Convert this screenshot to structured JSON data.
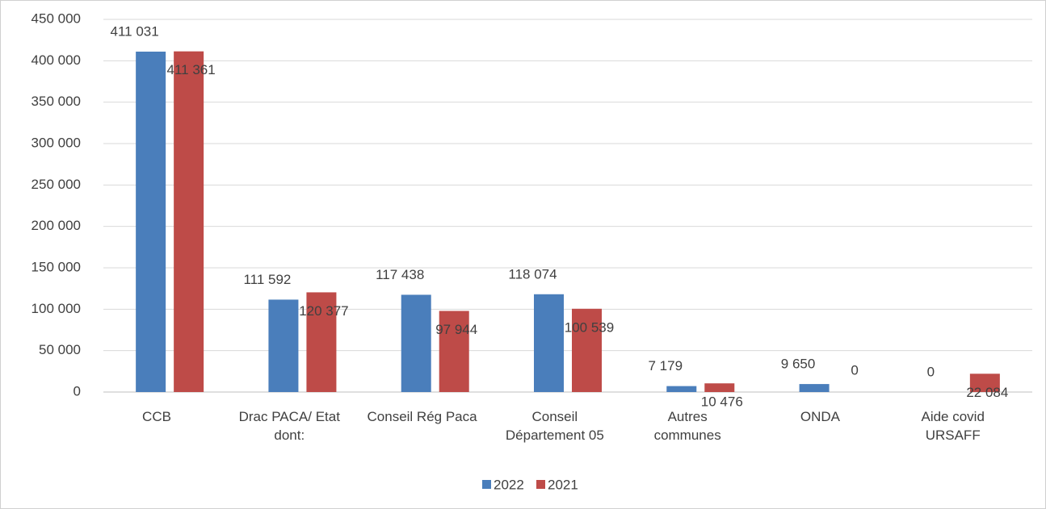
{
  "chart_data": {
    "type": "bar",
    "categories": [
      "CCB",
      "Drac PACA/ Etat\ndont:",
      "Conseil Rég Paca",
      "Conseil\nDépartement 05",
      "Autres\ncommunes",
      "ONDA",
      "Aide covid\nURSAFF"
    ],
    "series": [
      {
        "name": "2022",
        "color": "#4a7ebb",
        "values": [
          411031,
          111592,
          117438,
          118074,
          7179,
          9650,
          0
        ],
        "value_labels": [
          "411 031",
          "111 592",
          "117 438",
          "118 074",
          "7 179",
          "9 650",
          "0"
        ]
      },
      {
        "name": "2021",
        "color": "#be4b48",
        "values": [
          411361,
          120377,
          97944,
          100539,
          10476,
          0,
          22084
        ],
        "value_labels": [
          "411 361",
          "120 377",
          "97 944",
          "100 539",
          "10 476",
          "0",
          "22 084"
        ]
      }
    ],
    "ylim": [
      0,
      450000
    ],
    "yticks": [
      0,
      {
        "value": 50000,
        "label": "50 000"
      },
      {
        "value": 100000,
        "label": "100 000"
      },
      {
        "value": 150000,
        "label": "150 000"
      },
      {
        "value": 200000,
        "label": "200 000"
      },
      {
        "value": 250000,
        "label": "250 000"
      },
      {
        "value": 300000,
        "label": "300 000"
      },
      {
        "value": 350000,
        "label": "350 000"
      },
      {
        "value": 400000,
        "label": "400 000"
      },
      {
        "value": 450000,
        "label": "450 000"
      }
    ],
    "grid": true,
    "legend": "bottom"
  }
}
